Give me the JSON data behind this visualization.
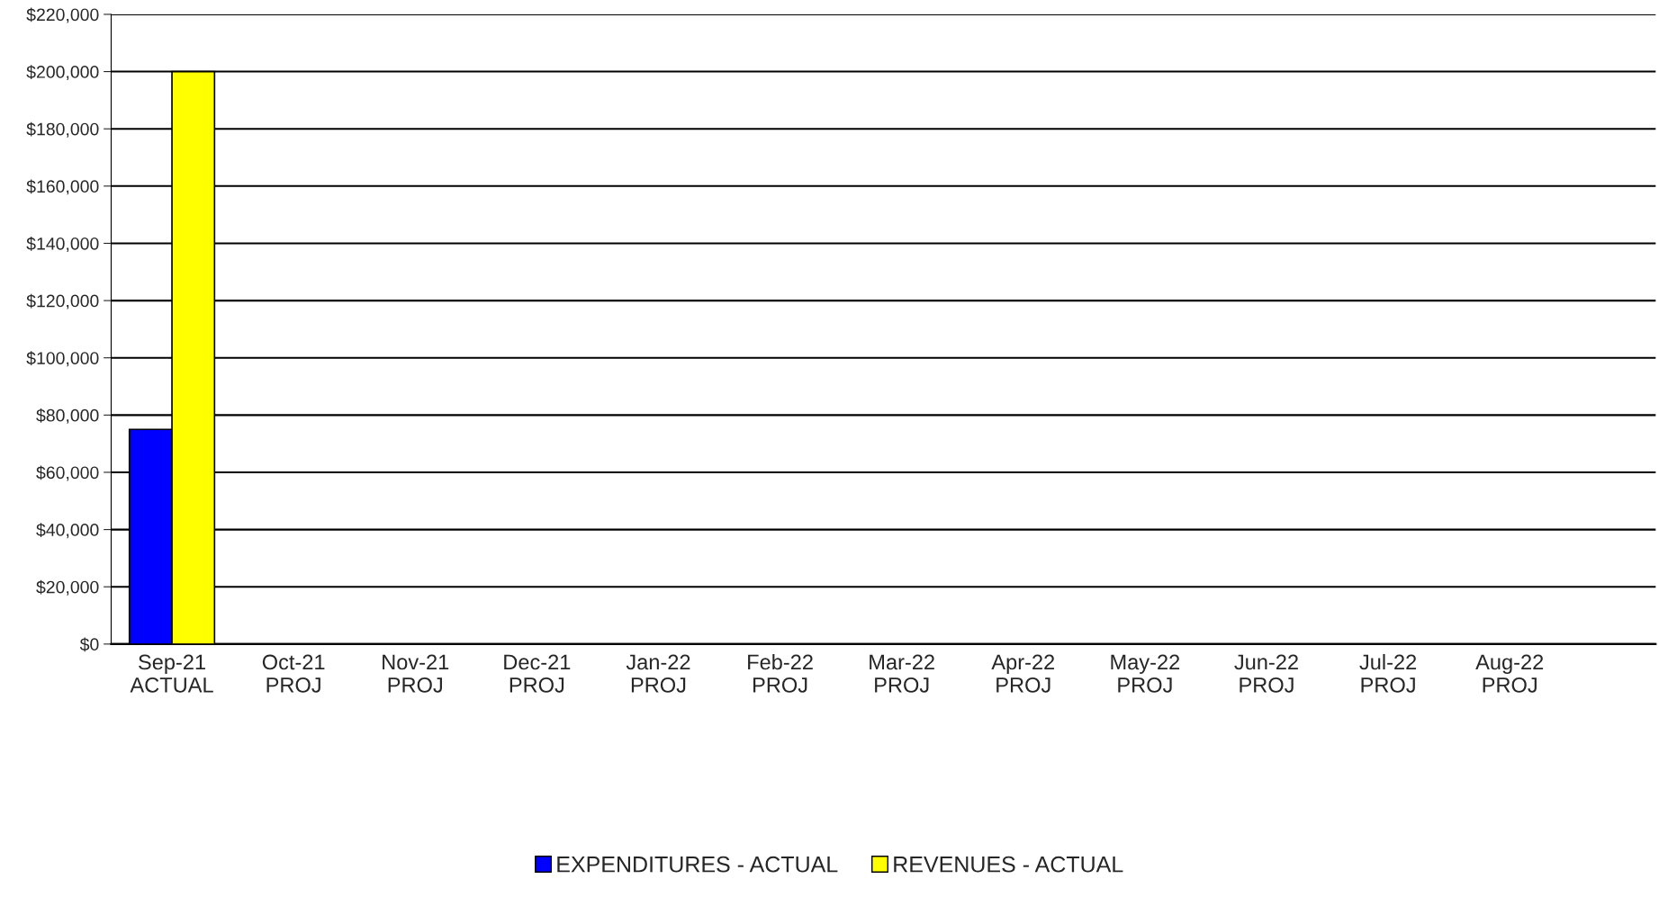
{
  "chart_data": {
    "type": "bar",
    "categories": [
      "Sep-21\nACTUAL",
      "Oct-21\nPROJ",
      "Nov-21\nPROJ",
      "Dec-21\nPROJ",
      "Jan-22\nPROJ",
      "Feb-22\nPROJ",
      "Mar-22\nPROJ",
      "Apr-22\nPROJ",
      "May-22\nPROJ",
      "Jun-22\nPROJ",
      "Jul-22\nPROJ",
      "Aug-22\nPROJ"
    ],
    "series": [
      {
        "name": "EXPENDITURES - ACTUAL",
        "color": "#0000ff",
        "values": [
          75000,
          null,
          null,
          null,
          null,
          null,
          null,
          null,
          null,
          null,
          null,
          null
        ]
      },
      {
        "name": "REVENUES - ACTUAL",
        "color": "#ffff00",
        "values": [
          200000,
          null,
          null,
          null,
          null,
          null,
          null,
          null,
          null,
          null,
          null,
          null
        ]
      }
    ],
    "ylim": [
      0,
      220000
    ],
    "yticks": [
      {
        "value": 0,
        "label": "$0"
      },
      {
        "value": 20000,
        "label": "$20,000"
      },
      {
        "value": 40000,
        "label": "$40,000"
      },
      {
        "value": 60000,
        "label": "$60,000"
      },
      {
        "value": 80000,
        "label": "$80,000"
      },
      {
        "value": 100000,
        "label": "$100,000"
      },
      {
        "value": 120000,
        "label": "$120,000"
      },
      {
        "value": 140000,
        "label": "$140,000"
      },
      {
        "value": 160000,
        "label": "$160,000"
      },
      {
        "value": 180000,
        "label": "$180,000"
      },
      {
        "value": 200000,
        "label": "$200,000"
      },
      {
        "value": 220000,
        "label": "$220,000"
      }
    ],
    "grid": "y",
    "legend": "bottom"
  }
}
